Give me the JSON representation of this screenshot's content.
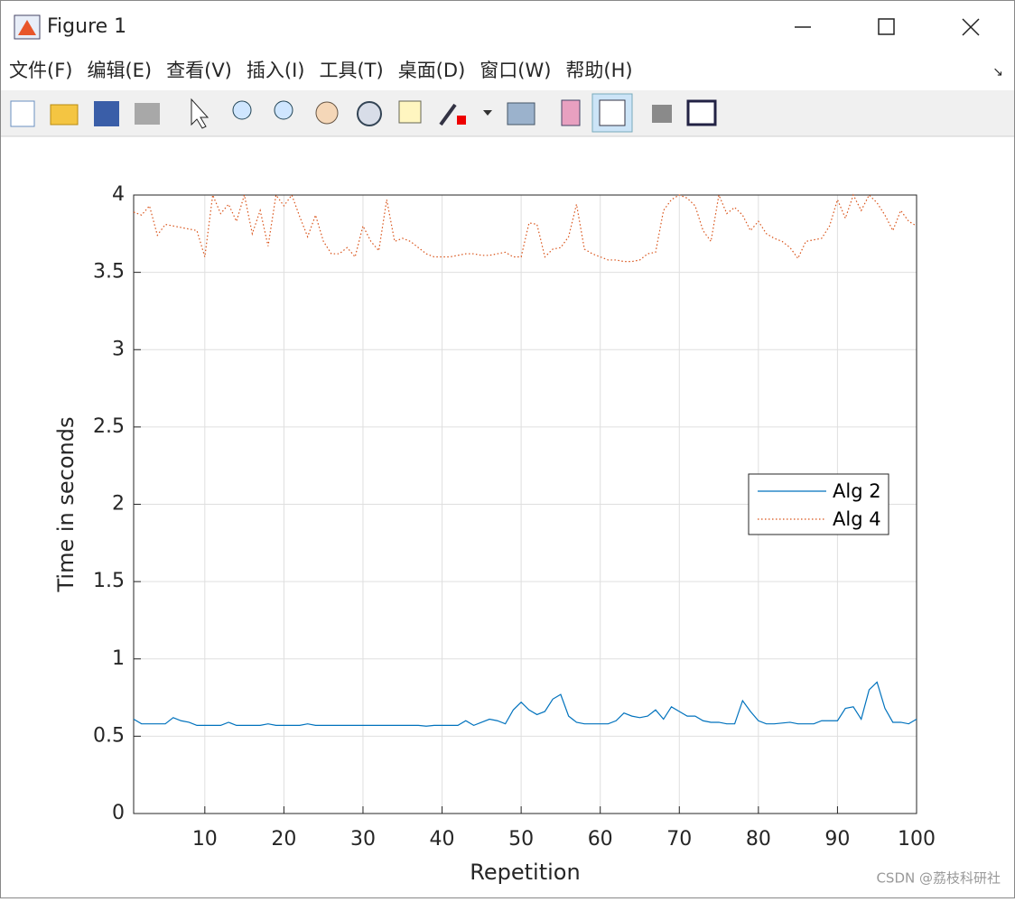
{
  "window": {
    "title": "Figure 1",
    "menu": [
      "文件(F)",
      "编辑(E)",
      "查看(V)",
      "插入(I)",
      "工具(T)",
      "桌面(D)",
      "窗口(W)",
      "帮助(H)"
    ],
    "watermark": "CSDN @荔枝科研社"
  },
  "chart_data": {
    "type": "line",
    "xlabel": "Repetition",
    "ylabel": "Time in seconds",
    "x": [
      1,
      2,
      3,
      4,
      5,
      6,
      7,
      8,
      9,
      10,
      11,
      12,
      13,
      14,
      15,
      16,
      17,
      18,
      19,
      20,
      21,
      22,
      23,
      24,
      25,
      26,
      27,
      28,
      29,
      30,
      31,
      32,
      33,
      34,
      35,
      36,
      37,
      38,
      39,
      40,
      41,
      42,
      43,
      44,
      45,
      46,
      47,
      48,
      49,
      50,
      51,
      52,
      53,
      54,
      55,
      56,
      57,
      58,
      59,
      60,
      61,
      62,
      63,
      64,
      65,
      66,
      67,
      68,
      69,
      70,
      71,
      72,
      73,
      74,
      75,
      76,
      77,
      78,
      79,
      80,
      81,
      82,
      83,
      84,
      85,
      86,
      87,
      88,
      89,
      90,
      91,
      92,
      93,
      94,
      95,
      96,
      97,
      98,
      99,
      100
    ],
    "series": [
      {
        "name": "Alg 2",
        "color": "#0072bd",
        "dash": "solid",
        "values": [
          0.61,
          0.58,
          0.58,
          0.58,
          0.58,
          0.62,
          0.6,
          0.59,
          0.57,
          0.57,
          0.57,
          0.57,
          0.59,
          0.57,
          0.57,
          0.57,
          0.57,
          0.58,
          0.57,
          0.57,
          0.57,
          0.57,
          0.58,
          0.57,
          0.57,
          0.57,
          0.57,
          0.57,
          0.57,
          0.57,
          0.57,
          0.57,
          0.57,
          0.57,
          0.57,
          0.57,
          0.57,
          0.565,
          0.57,
          0.57,
          0.57,
          0.57,
          0.6,
          0.57,
          0.59,
          0.61,
          0.6,
          0.58,
          0.67,
          0.72,
          0.67,
          0.64,
          0.66,
          0.74,
          0.77,
          0.63,
          0.59,
          0.58,
          0.58,
          0.58,
          0.58,
          0.6,
          0.65,
          0.63,
          0.62,
          0.63,
          0.67,
          0.61,
          0.69,
          0.66,
          0.63,
          0.63,
          0.6,
          0.59,
          0.59,
          0.58,
          0.58,
          0.73,
          0.66,
          0.6,
          0.58,
          0.58,
          0.585,
          0.59,
          0.58,
          0.58,
          0.58,
          0.6,
          0.6,
          0.6,
          0.68,
          0.69,
          0.61,
          0.8,
          0.85,
          0.68,
          0.59,
          0.59,
          0.58,
          0.61
        ]
      },
      {
        "name": "Alg 4",
        "color": "#d95319",
        "dash": "dotted",
        "values": [
          3.89,
          3.87,
          3.93,
          3.74,
          3.81,
          3.8,
          3.79,
          3.78,
          3.77,
          3.6,
          4.0,
          3.88,
          3.94,
          3.83,
          4.0,
          3.75,
          3.9,
          3.67,
          4.0,
          3.93,
          4.0,
          3.86,
          3.73,
          3.87,
          3.7,
          3.62,
          3.62,
          3.66,
          3.6,
          3.8,
          3.7,
          3.64,
          3.97,
          3.7,
          3.72,
          3.7,
          3.66,
          3.62,
          3.6,
          3.6,
          3.6,
          3.61,
          3.62,
          3.62,
          3.61,
          3.61,
          3.62,
          3.63,
          3.6,
          3.6,
          3.82,
          3.81,
          3.6,
          3.65,
          3.66,
          3.73,
          3.94,
          3.65,
          3.62,
          3.6,
          3.58,
          3.58,
          3.57,
          3.57,
          3.58,
          3.62,
          3.63,
          3.9,
          3.97,
          4.0,
          3.98,
          3.93,
          3.77,
          3.7,
          4.0,
          3.88,
          3.92,
          3.87,
          3.77,
          3.83,
          3.75,
          3.72,
          3.7,
          3.66,
          3.59,
          3.7,
          3.71,
          3.72,
          3.8,
          3.97,
          3.85,
          4.0,
          3.9,
          4.0,
          3.95,
          3.87,
          3.77,
          3.9,
          3.83,
          3.8
        ]
      }
    ],
    "xlim": [
      1,
      100
    ],
    "xticks": [
      10,
      20,
      30,
      40,
      50,
      60,
      70,
      80,
      90,
      100
    ],
    "ylim": [
      0,
      4
    ],
    "yticks": [
      0,
      0.5,
      1,
      1.5,
      2,
      2.5,
      3,
      3.5,
      4
    ],
    "grid": true,
    "legend": "east"
  }
}
